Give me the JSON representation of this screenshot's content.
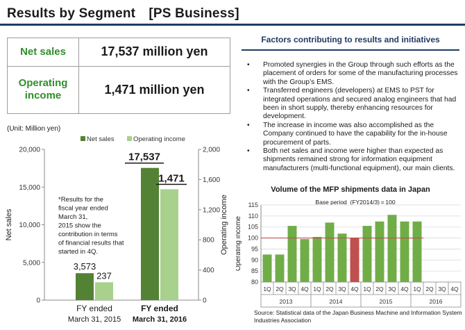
{
  "header": {
    "title": "Results by Segment　[PS Business]"
  },
  "kpis": [
    {
      "label_line1": "Net sales",
      "label_line2": "",
      "value": "17,537 million yen"
    },
    {
      "label_line1": "Operating",
      "label_line2": "income",
      "value": "1,471 million yen"
    }
  ],
  "factors": {
    "title": "Factors contributing to results and initiatives",
    "bullet_symbol": "•",
    "items": [
      "Promoted synergies in the Group through such efforts as the placement of orders for some of the manufacturing processes with the Group’s EMS.",
      "Transferred engineers (developers) at EMS to PST for integrated operations and secured analog engineers that had been in short supply, thereby enhancing resources for development.",
      "The increase in income was also accomplished as the Company continued to have the capability for the in-house procurement of parts.",
      "Both net sales and income were higher than expected as shipments remained strong for information equipment manufacturers (multi-functional equipment), our main clients."
    ]
  },
  "chart_data": [
    {
      "type": "bar",
      "unit_label": "(Unit: Million yen)",
      "categories": [
        {
          "line1": "FY ended",
          "line2": "March 31, 2015",
          "bold": false
        },
        {
          "line1": "FY ended",
          "line2": "March 31, 2016",
          "bold": true
        }
      ],
      "series": [
        {
          "name": "Net sales",
          "axis": "left",
          "color": "#548235",
          "values": [
            3573,
            17537
          ],
          "value_labels": [
            "3,573",
            "17,537"
          ]
        },
        {
          "name": "Operating income",
          "axis": "right",
          "color": "#a9d18e",
          "values": [
            237,
            1471
          ],
          "value_labels": [
            "237",
            "1,471"
          ]
        }
      ],
      "ylabel": "Net sales",
      "y2label": "Operating income",
      "ylim": [
        0,
        20000
      ],
      "y2lim": [
        0,
        2000
      ],
      "yticks": [
        "0",
        "5,000",
        "10,000",
        "15,000",
        "20,000"
      ],
      "y2ticks": [
        "0",
        "400",
        "800",
        "1,200",
        "1,600",
        "2,000"
      ],
      "legend_position": "top",
      "grid": false,
      "note": "*Results for the fiscal year ended March 31, 2015 show the contribution in terms of financial results that started in 4Q."
    },
    {
      "type": "bar",
      "title": "Volume of the MFP shipments data in Japan",
      "subtitle": "Base period  (FY2014/3) = 100",
      "ylabel": "Operating income",
      "ylim": [
        80,
        115
      ],
      "yticks": [
        "80",
        "85",
        "90",
        "95",
        "100",
        "105",
        "110",
        "115"
      ],
      "reference_line": 100,
      "quarters": [
        "1Q",
        "2Q",
        "3Q",
        "4Q",
        "1Q",
        "2Q",
        "3Q",
        "4Q",
        "1Q",
        "2Q",
        "3Q",
        "4Q",
        "1Q",
        "2Q",
        "3Q",
        "4Q"
      ],
      "years": [
        "2013",
        "2014",
        "2015",
        "2016"
      ],
      "values": [
        92.5,
        92.5,
        105.5,
        99.5,
        100.5,
        107,
        102,
        100,
        105.5,
        107.5,
        110.5,
        107.5,
        107.5,
        null,
        null,
        null
      ],
      "bar_color": "#70ad47",
      "highlight_color": "#c0504d",
      "highlight_index": 7,
      "reference_line_color": "#c0504d",
      "grid": true,
      "source": "Source: Statistical data of the Japan Business Machine and Information System Industries Association"
    }
  ]
}
